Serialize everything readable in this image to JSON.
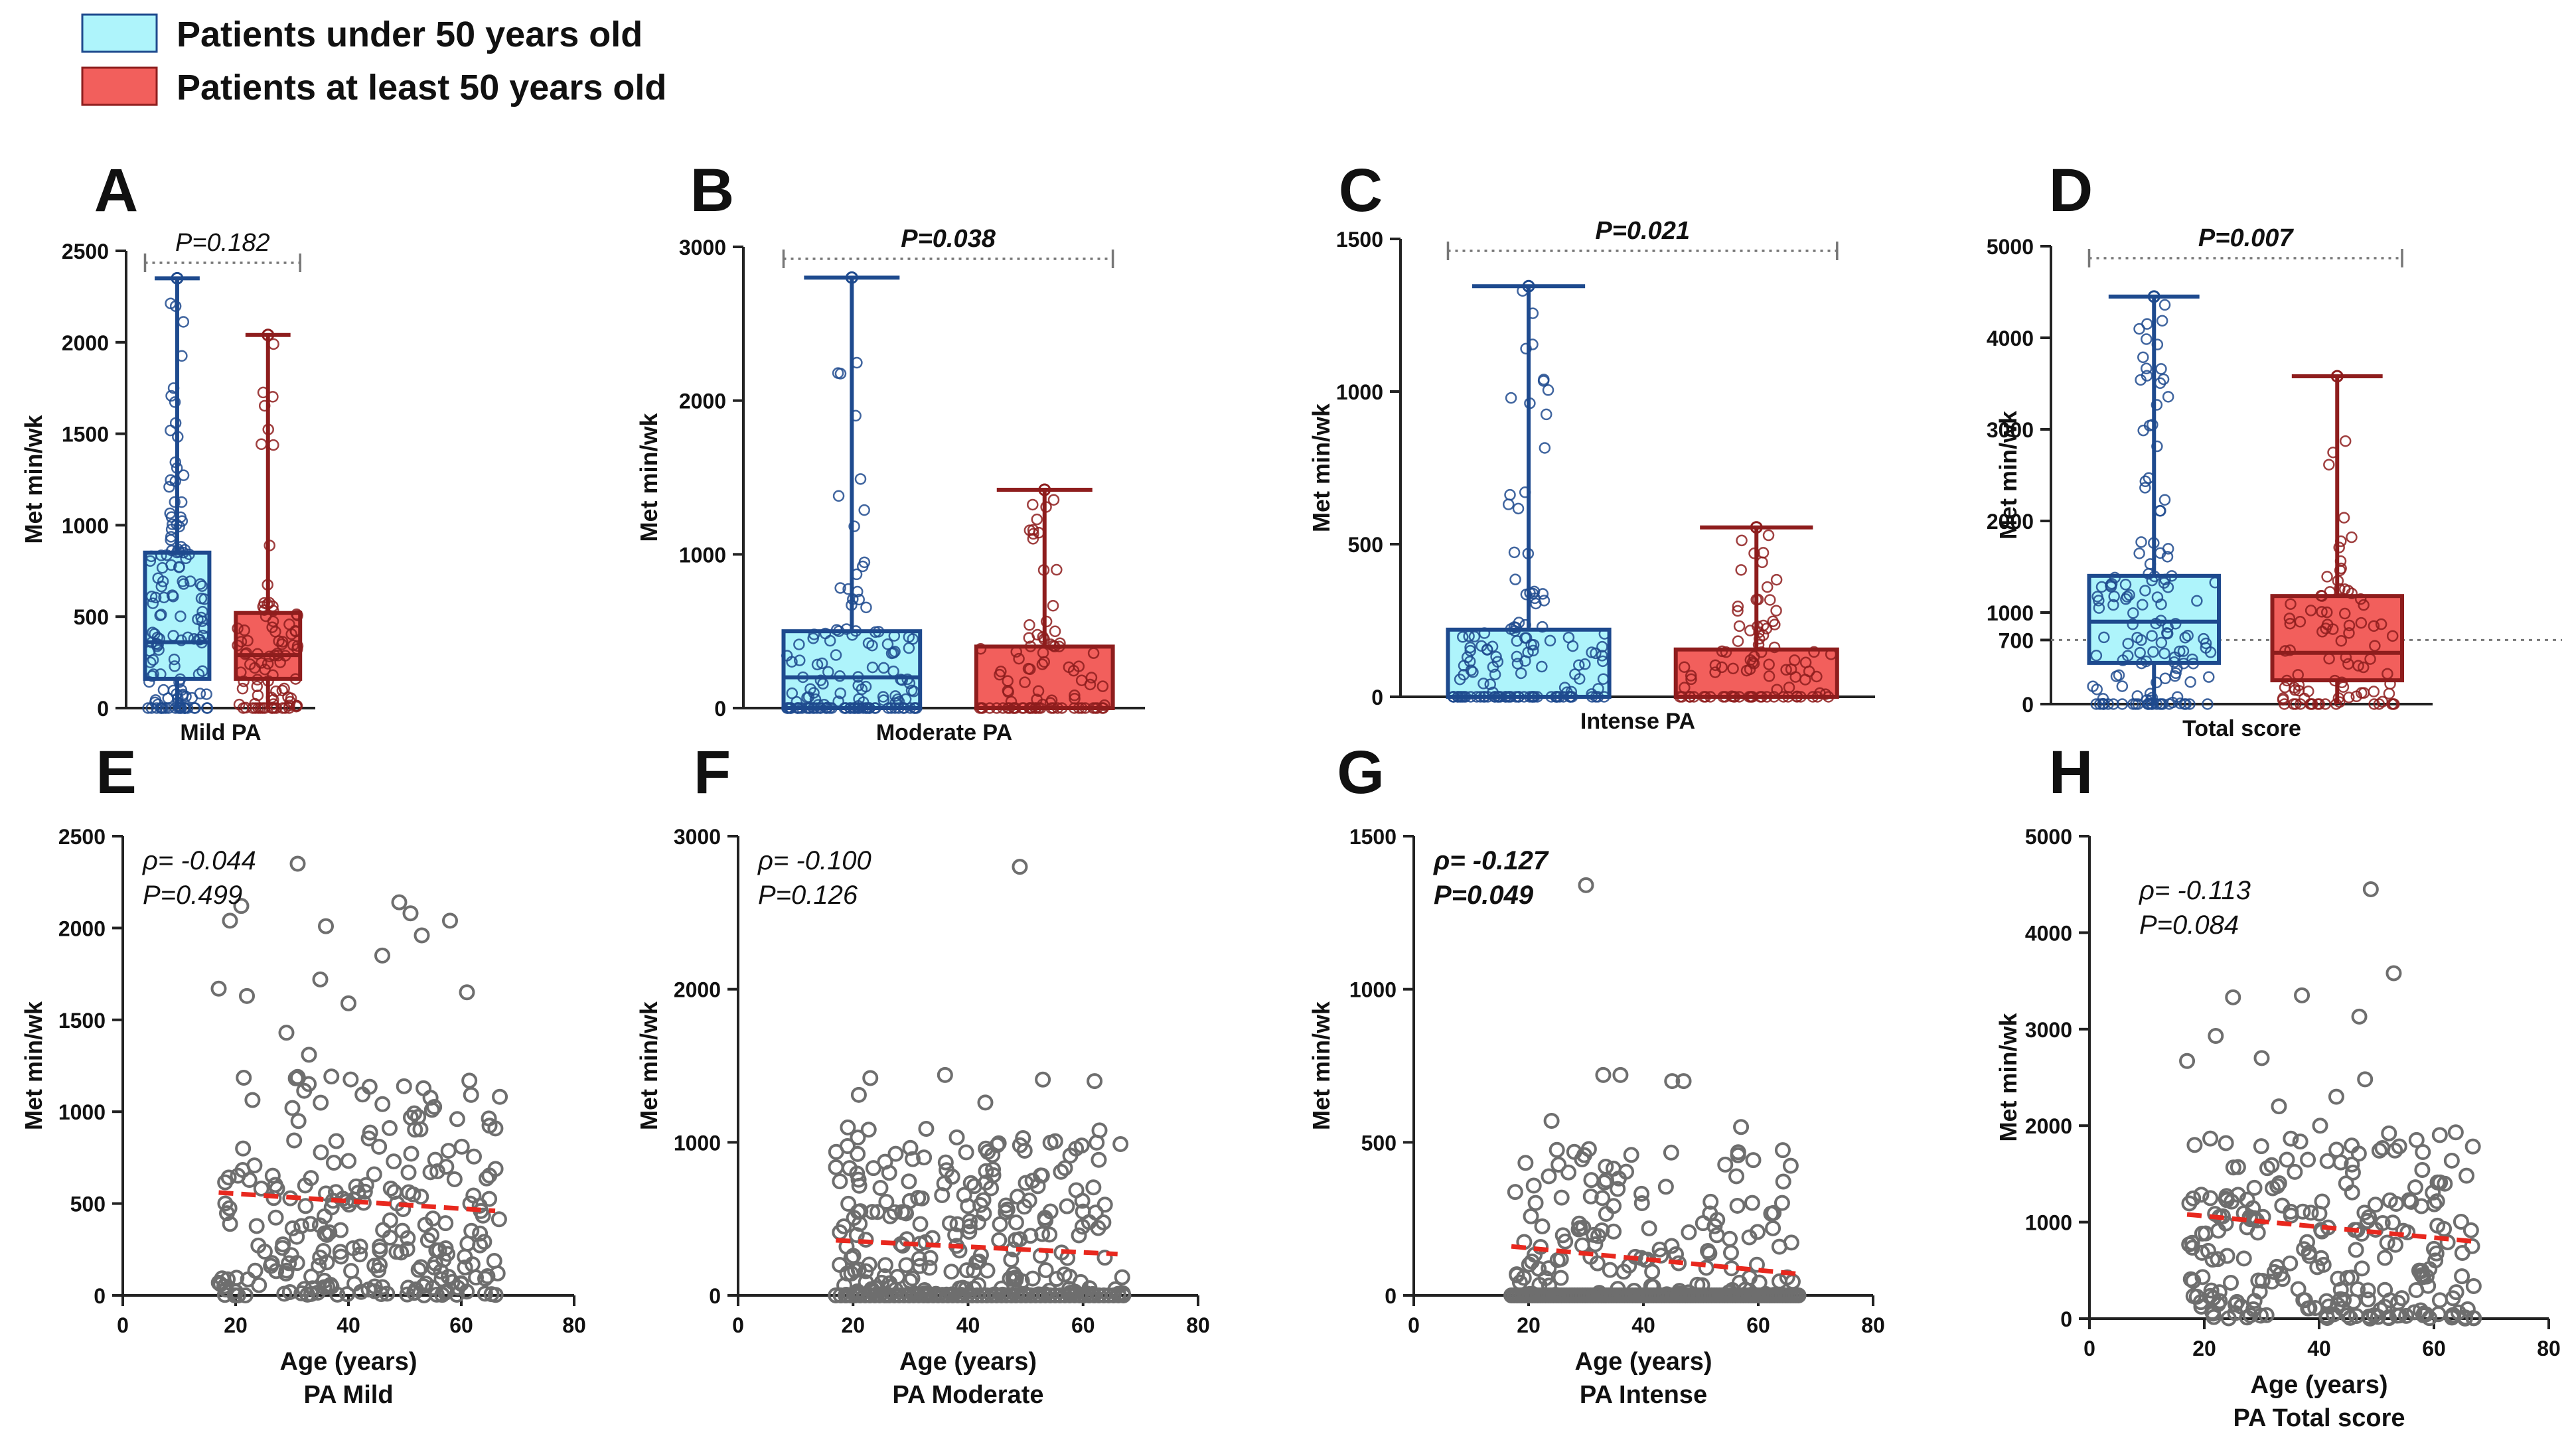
{
  "legend": {
    "items": [
      {
        "label": "Patients under 50 years old",
        "fill": "#aef4fb",
        "stroke": "#1e4a8e"
      },
      {
        "label": "Patients at least 50 years old",
        "fill": "#f25f5c",
        "stroke": "#8e1d1d"
      }
    ]
  },
  "colors": {
    "under50_fill": "#aef4fb",
    "under50_stroke": "#1e4a8e",
    "over50_fill": "#f25f5c",
    "over50_stroke": "#8e1d1d",
    "scatter_point": "#6e6e6e",
    "trend": "#e8281e",
    "bracket": "#777777"
  },
  "chart_data": [
    {
      "panel": "A",
      "type": "box",
      "title": "",
      "xlabel": "Mild PA",
      "ylabel": "Met min/wk",
      "ylim": [
        0,
        2500
      ],
      "yticks": [
        0,
        500,
        1000,
        1500,
        2000,
        2500
      ],
      "pvalue": "P=0.182",
      "bold": false,
      "boxes": [
        {
          "group": "Patients under 50 years old",
          "min": 0,
          "q1": 160,
          "median": 360,
          "q3": 850,
          "max": 2350
        },
        {
          "group": "Patients at least 50 years old",
          "min": 0,
          "q1": 160,
          "median": 290,
          "q3": 520,
          "max": 2040
        }
      ]
    },
    {
      "panel": "B",
      "type": "box",
      "title": "",
      "xlabel": "Moderate PA",
      "ylabel": "Met min/wk",
      "ylim": [
        0,
        3000
      ],
      "yticks": [
        0,
        1000,
        2000,
        3000
      ],
      "pvalue": "P=0.038",
      "bold": true,
      "boxes": [
        {
          "group": "Patients under 50 years old",
          "min": 0,
          "q1": 0,
          "median": 200,
          "q3": 500,
          "max": 2800
        },
        {
          "group": "Patients at least 50 years old",
          "min": 0,
          "q1": 0,
          "median": 0,
          "q3": 400,
          "max": 1420
        }
      ]
    },
    {
      "panel": "C",
      "type": "box",
      "title": "",
      "xlabel": "Intense PA",
      "ylabel": "Met min/wk",
      "ylim": [
        0,
        1500
      ],
      "yticks": [
        0,
        500,
        1000,
        1500
      ],
      "pvalue": "P=0.021",
      "bold": true,
      "boxes": [
        {
          "group": "Patients under 50 years old",
          "min": 0,
          "q1": 0,
          "median": 0,
          "q3": 220,
          "max": 1345
        },
        {
          "group": "Patients at least 50 years old",
          "min": 0,
          "q1": 0,
          "median": 0,
          "q3": 155,
          "max": 555
        }
      ]
    },
    {
      "panel": "D",
      "type": "box",
      "title": "",
      "xlabel": "Total score",
      "ylabel": "Met min/wk",
      "ylim": [
        0,
        5000
      ],
      "yticks": [
        0,
        700,
        1000,
        2000,
        3000,
        4000,
        5000
      ],
      "reference_line": 700,
      "pvalue": "P=0.007",
      "bold": true,
      "boxes": [
        {
          "group": "Patients under 50 years old",
          "min": 0,
          "q1": 450,
          "median": 900,
          "q3": 1400,
          "max": 4450
        },
        {
          "group": "Patients at least 50 years old",
          "min": 0,
          "q1": 260,
          "median": 560,
          "q3": 1180,
          "max": 3580
        }
      ]
    },
    {
      "panel": "E",
      "type": "scatter",
      "xlabel": "Age (years)",
      "sublabel": "PA Mild",
      "ylabel": "Met min/wk",
      "xlim": [
        0,
        80
      ],
      "xticks": [
        0,
        20,
        40,
        60,
        80
      ],
      "ylim": [
        0,
        2500
      ],
      "yticks": [
        0,
        500,
        1000,
        1500,
        2000,
        2500
      ],
      "rho": "ρ= -0.044",
      "pvalue": "P=0.499",
      "bold": false,
      "trend": {
        "x": [
          17,
          66
        ],
        "y": [
          560,
          460
        ]
      },
      "highlights": [
        {
          "x": 31,
          "y": 2350
        },
        {
          "x": 21,
          "y": 2120
        },
        {
          "x": 19,
          "y": 2040
        },
        {
          "x": 36,
          "y": 2010
        },
        {
          "x": 49,
          "y": 2140
        },
        {
          "x": 51,
          "y": 2080
        },
        {
          "x": 46,
          "y": 1850
        },
        {
          "x": 53,
          "y": 1960
        },
        {
          "x": 58,
          "y": 2040
        },
        {
          "x": 17,
          "y": 1670
        },
        {
          "x": 22,
          "y": 1630
        },
        {
          "x": 35,
          "y": 1720
        },
        {
          "x": 61,
          "y": 1650
        },
        {
          "x": 40,
          "y": 1590
        },
        {
          "x": 29,
          "y": 1430
        },
        {
          "x": 33,
          "y": 1310
        }
      ],
      "seed": 11,
      "n_random": 240,
      "randomCap": 1200
    },
    {
      "panel": "F",
      "type": "scatter",
      "xlabel": "Age (years)",
      "sublabel": "PA Moderate",
      "ylabel": "Met min/wk",
      "xlim": [
        0,
        80
      ],
      "xticks": [
        0,
        20,
        40,
        60,
        80
      ],
      "ylim": [
        0,
        3000
      ],
      "yticks": [
        0,
        1000,
        2000,
        3000
      ],
      "rho": "ρ= -0.100",
      "pvalue": "P=0.126",
      "bold": false,
      "trend": {
        "x": [
          17,
          66
        ],
        "y": [
          360,
          270
        ]
      },
      "highlights": [
        {
          "x": 49,
          "y": 2800
        },
        {
          "x": 36,
          "y": 1440
        },
        {
          "x": 23,
          "y": 1420
        },
        {
          "x": 53,
          "y": 1410
        },
        {
          "x": 62,
          "y": 1400
        },
        {
          "x": 21,
          "y": 1310
        },
        {
          "x": 43,
          "y": 1260
        }
      ],
      "seed": 23,
      "n_random": 230,
      "randomCap": 1100,
      "zeroRow": 60
    },
    {
      "panel": "G",
      "type": "scatter",
      "xlabel": "Age (years)",
      "sublabel": "PA Intense",
      "ylabel": "Met min/wk",
      "xlim": [
        0,
        80
      ],
      "xticks": [
        0,
        20,
        40,
        60,
        80
      ],
      "ylim": [
        0,
        1500
      ],
      "yticks": [
        0,
        500,
        1000,
        1500
      ],
      "rho": "ρ= -0.127",
      "pvalue": "P=0.049",
      "bold": true,
      "trend": {
        "x": [
          17,
          67
        ],
        "y": [
          160,
          70
        ]
      },
      "highlights": [
        {
          "x": 30,
          "y": 1340
        },
        {
          "x": 33,
          "y": 720
        },
        {
          "x": 36,
          "y": 720
        },
        {
          "x": 45,
          "y": 700
        },
        {
          "x": 47,
          "y": 700
        },
        {
          "x": 24,
          "y": 570
        },
        {
          "x": 57,
          "y": 550
        }
      ],
      "seed": 37,
      "n_random": 140,
      "randomCap": 480,
      "zeroRow": 110
    },
    {
      "panel": "H",
      "type": "scatter",
      "xlabel": "Age (years)",
      "sublabel": "PA Total score",
      "ylabel": "Met min/wk",
      "xlim": [
        0,
        80
      ],
      "xticks": [
        0,
        20,
        40,
        60,
        80
      ],
      "ylim": [
        0,
        5000
      ],
      "yticks": [
        0,
        1000,
        2000,
        3000,
        4000,
        5000
      ],
      "rho": "ρ= -0.113",
      "pvalue": "P=0.084",
      "bold": false,
      "trend": {
        "x": [
          17,
          67
        ],
        "y": [
          1080,
          800
        ]
      },
      "highlights": [
        {
          "x": 49,
          "y": 4450
        },
        {
          "x": 53,
          "y": 3580
        },
        {
          "x": 25,
          "y": 3330
        },
        {
          "x": 37,
          "y": 3350
        },
        {
          "x": 47,
          "y": 3130
        },
        {
          "x": 22,
          "y": 2930
        },
        {
          "x": 17,
          "y": 2670
        },
        {
          "x": 30,
          "y": 2700
        },
        {
          "x": 48,
          "y": 2480
        },
        {
          "x": 43,
          "y": 2300
        },
        {
          "x": 33,
          "y": 2200
        }
      ],
      "seed": 53,
      "n_random": 240,
      "randomCap": 2000
    }
  ]
}
